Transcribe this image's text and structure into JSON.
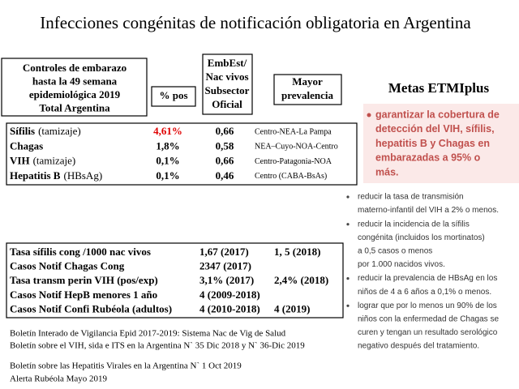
{
  "title": "Infecciones congénitas de notificación obligatoria en Argentina",
  "headers": {
    "controles": [
      "Controles de embarazo",
      "hasta  la 49 semana",
      "epidemiológica 2019",
      "Total Argentina"
    ],
    "pos": "% pos",
    "embest": [
      "EmbEst/",
      "Nac vivos",
      "Subsector",
      "Oficial"
    ],
    "prevalencia": [
      "Mayor",
      "prevalencia"
    ]
  },
  "table1": {
    "rows": [
      {
        "name": "Sífilis",
        "method": "(tamizaje)",
        "pct": "4,61%",
        "pct_color": "#e00000",
        "ratio": "0,66",
        "region": "Centro-NEA-La Pampa"
      },
      {
        "name": "Chagas",
        "method": "",
        "pct": "1,8%",
        "ratio": "0,58",
        "region": "NEA–Cuyo-NOA-Centro"
      },
      {
        "name": "VIH",
        "method": "(tamizaje)",
        "pct": "0,1%",
        "ratio": "0,66",
        "region": "Centro-Patagonia-NOA"
      },
      {
        "name": "Hepatitis B",
        "method": "(HBsAg)",
        "pct": "0,1%",
        "ratio": "0,46",
        "region": "Centro (CABA-BsAs)"
      }
    ]
  },
  "table2": {
    "rows": [
      [
        "Tasa sífilis cong /1000 nac vivos",
        "1,67 (2017)",
        "1, 5 (2018)"
      ],
      [
        "Casos Notif Chagas Cong",
        "2347  (2017)"
      ],
      [
        "Tasa transm perin VIH (pos/exp)",
        "3,1% (2017)",
        "2,4% (2018)"
      ],
      [
        "Casos Notif HepB menores 1 año",
        "4 (2009-2018)"
      ],
      [
        "Casos Notif  Confi Rubéola (adultos)",
        "4 (2010-2018)",
        "4 (2019)"
      ]
    ]
  },
  "references": [
    "Boletín Interado de Vigilancia Epid 2017-2019:  Sistema Nac de Vig  de Salud",
    "Boletín sobre el VIH,  sida e ITS  en la Argentina N` 35  Dic 2018  y N`  36-Dic  2019",
    "Boletín sobre las Hepatitis Virales  en la Argentina N` 1 Oct  2019",
    "Alerta Rubéola Mayo 2019"
  ],
  "metas": {
    "title": "Metas ETMIplus",
    "main": [
      "garantizar la cobertura de",
      "detección del VIH, sífilis,",
      "hepatitis B y Chagas en",
      "embarazadas a 95% o",
      "más."
    ],
    "bullets": [
      [
        "reducir la tasa de transmisión",
        "materno-infantil del VIH a 2% o menos."
      ],
      [
        "reducir la incidencia de la sífilis",
        "congénita (incluidos los mortinatos)",
        "a 0,5 casos o menos",
        "por 1.000 nacidos vivos."
      ],
      [
        "reducir la prevalencia de HBsAg en los",
        "niños de 4 a 6 años a 0,1% o menos."
      ],
      [
        "lograr que por lo menos un 90% de los",
        "niños con la enfermedad de Chagas se",
        "curen y tengan un resultado serológico",
        "negativo después del tratamiento."
      ]
    ]
  }
}
